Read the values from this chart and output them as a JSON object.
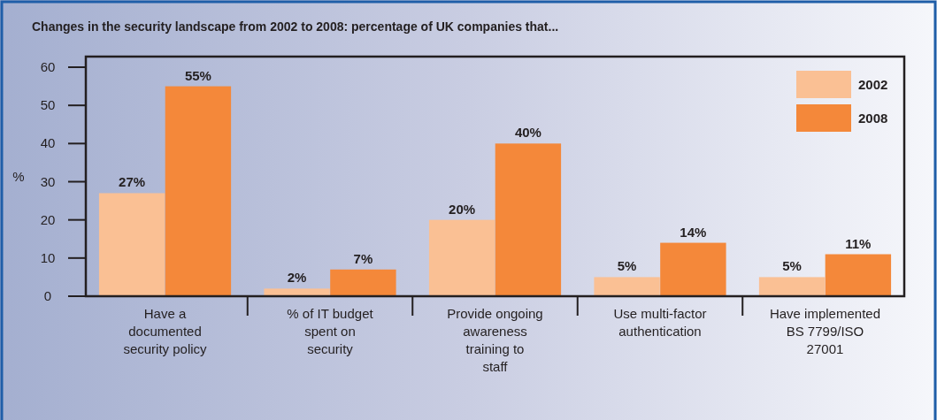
{
  "chart_data": {
    "type": "bar",
    "title": "Changes in the security landscape from 2002 to 2008: percentage of UK companies that...",
    "ylabel": "%",
    "categories": [
      "Have a documented security policy",
      "% of IT budget spent on security",
      "Provide ongoing awareness training to staff",
      "Use multi-factor authentication",
      "Have implemented BS 7799/ISO 27001"
    ],
    "series": [
      {
        "name": "2002",
        "color": "#fac094",
        "values": [
          27,
          2,
          20,
          5,
          5
        ],
        "value_labels": [
          "27%",
          "2%",
          "20%",
          "5%",
          "5%"
        ]
      },
      {
        "name": "2008",
        "color": "#f4883a",
        "values": [
          55,
          7,
          40,
          14,
          11
        ],
        "value_labels": [
          "55%",
          "7%",
          "40%",
          "14%",
          "11%"
        ]
      }
    ],
    "ylim": [
      0,
      60
    ],
    "yticks": [
      0,
      10,
      20,
      30,
      40,
      50,
      60
    ],
    "legend": "top right",
    "grid": false
  }
}
